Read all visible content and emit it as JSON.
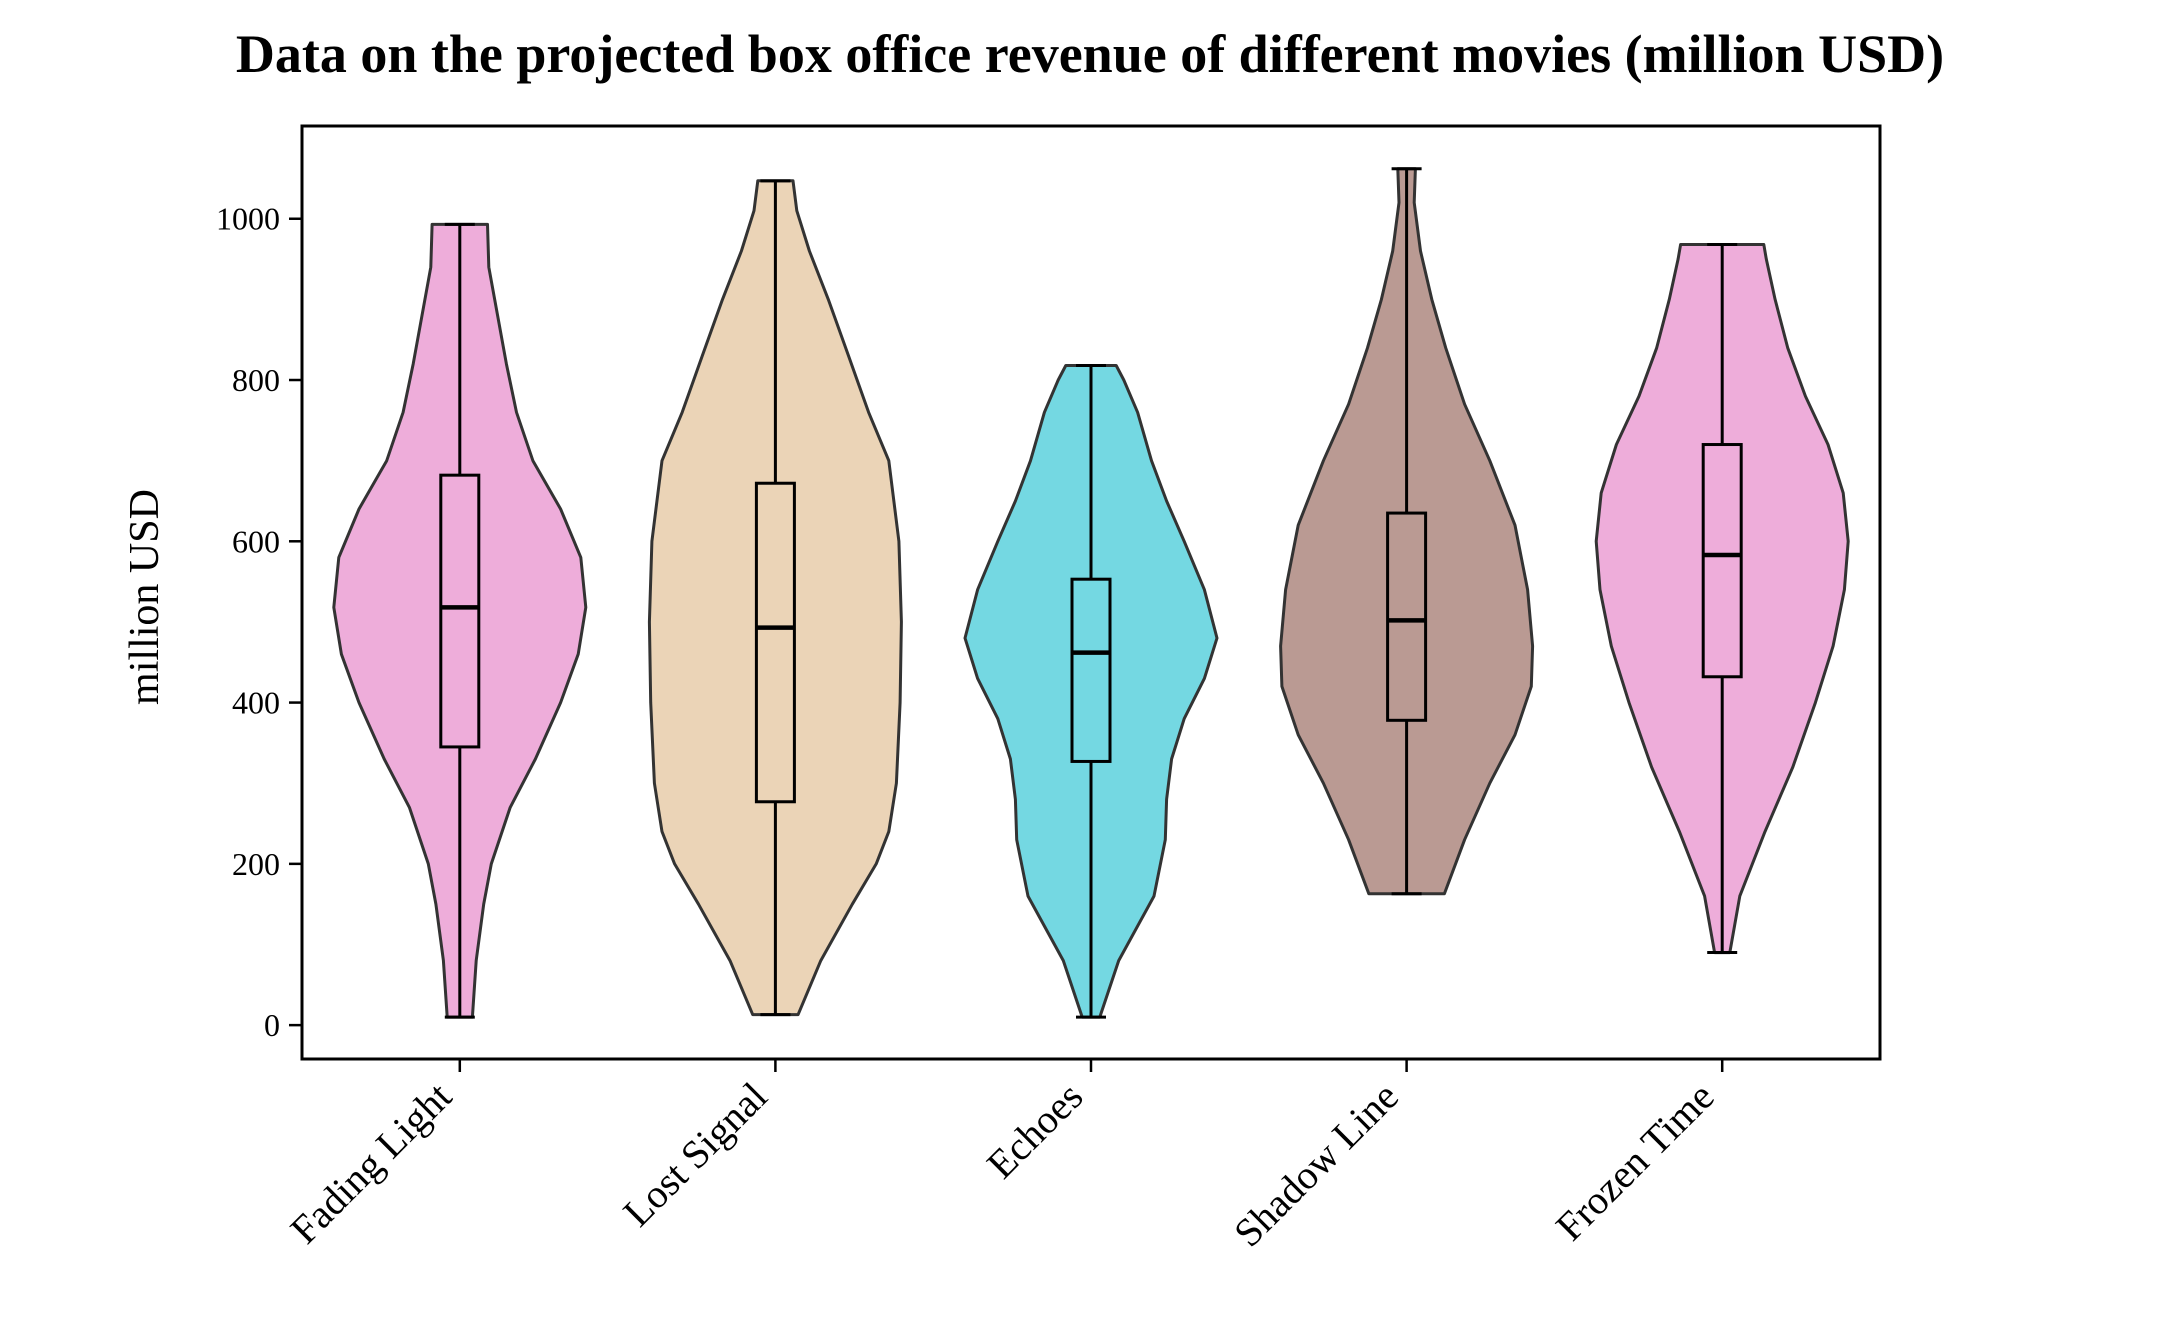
{
  "chart_data": {
    "type": "violin",
    "title": "Data on the projected box office revenue of different movies (million USD)",
    "xlabel": "",
    "ylabel": "million USD",
    "ylim": [
      -42,
      1115
    ],
    "yticks": [
      0,
      200,
      400,
      600,
      800,
      1000
    ],
    "grid": false,
    "categories": [
      "Fading Light",
      "Lost Signal",
      "Echoes",
      "Shadow Line",
      "Frozen Time"
    ],
    "series": [
      {
        "category": "Fading Light",
        "color": "#e377c2",
        "min": 10,
        "q1": 345,
        "median": 518,
        "q3": 682,
        "max": 993,
        "density": [
          [
            10,
            0.1
          ],
          [
            80,
            0.13
          ],
          [
            150,
            0.19
          ],
          [
            200,
            0.25
          ],
          [
            270,
            0.4
          ],
          [
            330,
            0.6
          ],
          [
            400,
            0.8
          ],
          [
            460,
            0.94
          ],
          [
            518,
            1.0
          ],
          [
            580,
            0.96
          ],
          [
            640,
            0.8
          ],
          [
            700,
            0.58
          ],
          [
            760,
            0.45
          ],
          [
            820,
            0.37
          ],
          [
            880,
            0.3
          ],
          [
            940,
            0.23
          ],
          [
            993,
            0.22
          ]
        ]
      },
      {
        "category": "Lost Signal",
        "color": "#deb887",
        "min": 13,
        "q1": 277,
        "median": 493,
        "q3": 672,
        "max": 1047,
        "density": [
          [
            13,
            0.18
          ],
          [
            80,
            0.36
          ],
          [
            150,
            0.61
          ],
          [
            200,
            0.8
          ],
          [
            240,
            0.9
          ],
          [
            300,
            0.96
          ],
          [
            400,
            0.99
          ],
          [
            500,
            1.0
          ],
          [
            600,
            0.98
          ],
          [
            700,
            0.9
          ],
          [
            760,
            0.74
          ],
          [
            830,
            0.58
          ],
          [
            900,
            0.42
          ],
          [
            960,
            0.27
          ],
          [
            1010,
            0.17
          ],
          [
            1047,
            0.14
          ]
        ]
      },
      {
        "category": "Echoes",
        "color": "#17becf",
        "min": 10,
        "q1": 327,
        "median": 462,
        "q3": 553,
        "max": 818,
        "density": [
          [
            10,
            0.07
          ],
          [
            80,
            0.22
          ],
          [
            160,
            0.5
          ],
          [
            230,
            0.59
          ],
          [
            280,
            0.6
          ],
          [
            330,
            0.64
          ],
          [
            380,
            0.74
          ],
          [
            430,
            0.9
          ],
          [
            480,
            1.0
          ],
          [
            540,
            0.9
          ],
          [
            600,
            0.74
          ],
          [
            650,
            0.6
          ],
          [
            700,
            0.48
          ],
          [
            760,
            0.37
          ],
          [
            800,
            0.26
          ],
          [
            818,
            0.2
          ]
        ]
      },
      {
        "category": "Shadow Line",
        "color": "#8c564b",
        "min": 163,
        "q1": 378,
        "median": 502,
        "q3": 635,
        "max": 1062,
        "density": [
          [
            163,
            0.3
          ],
          [
            230,
            0.46
          ],
          [
            300,
            0.66
          ],
          [
            360,
            0.86
          ],
          [
            420,
            0.99
          ],
          [
            470,
            1.0
          ],
          [
            540,
            0.96
          ],
          [
            620,
            0.86
          ],
          [
            700,
            0.66
          ],
          [
            770,
            0.46
          ],
          [
            840,
            0.31
          ],
          [
            900,
            0.2
          ],
          [
            960,
            0.11
          ],
          [
            1020,
            0.06
          ],
          [
            1062,
            0.07
          ]
        ]
      },
      {
        "category": "Frozen Time",
        "color": "#e377c2",
        "min": 90,
        "q1": 432,
        "median": 583,
        "q3": 720,
        "max": 968,
        "density": [
          [
            90,
            0.06
          ],
          [
            160,
            0.14
          ],
          [
            240,
            0.34
          ],
          [
            320,
            0.56
          ],
          [
            400,
            0.74
          ],
          [
            470,
            0.88
          ],
          [
            540,
            0.97
          ],
          [
            600,
            1.0
          ],
          [
            660,
            0.96
          ],
          [
            720,
            0.84
          ],
          [
            780,
            0.66
          ],
          [
            840,
            0.52
          ],
          [
            900,
            0.42
          ],
          [
            950,
            0.35
          ],
          [
            968,
            0.33
          ]
        ]
      }
    ]
  }
}
